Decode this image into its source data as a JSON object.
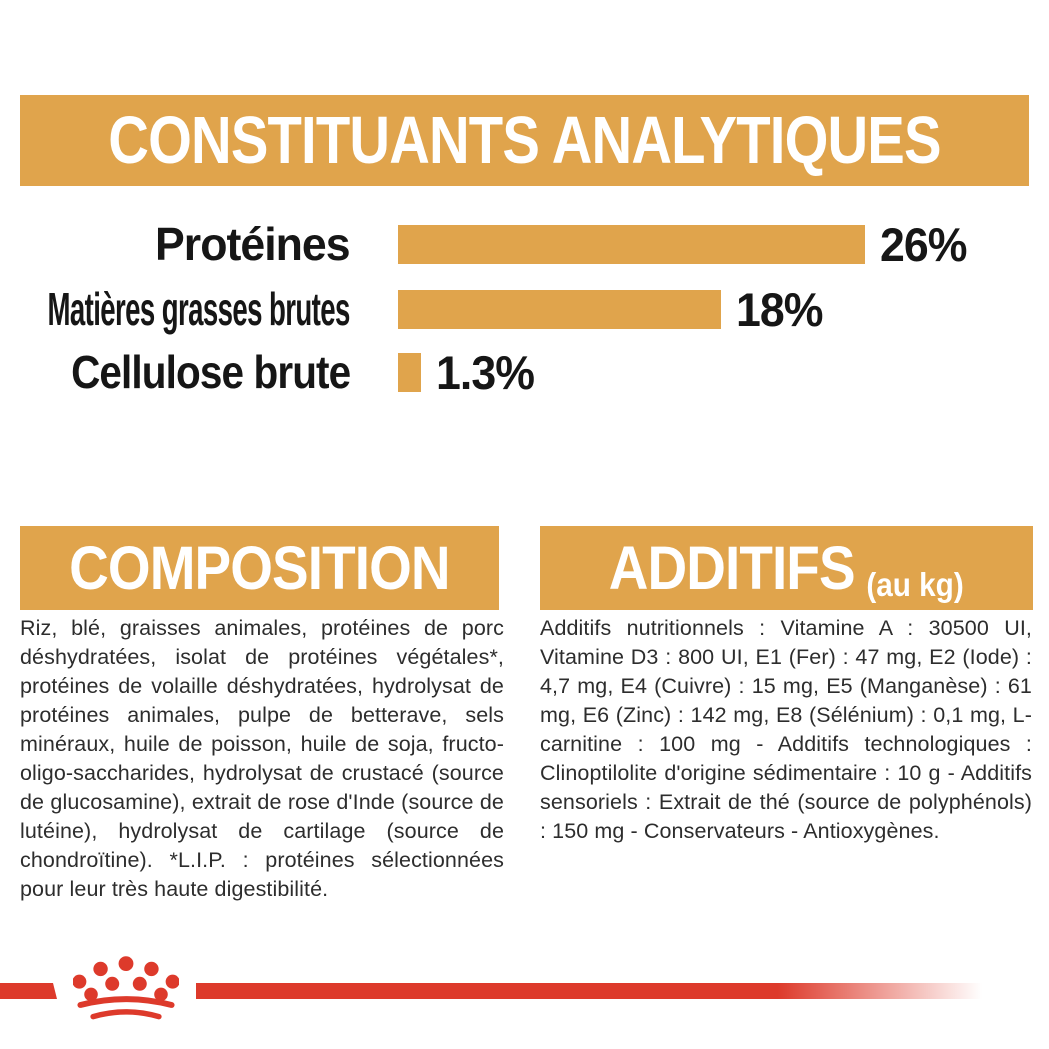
{
  "page": {
    "background": "#ffffff",
    "accent_gold": "#e0a44c",
    "brand_red": "#dd3a2b",
    "text_dark": "#1d1d1b"
  },
  "analytical": {
    "title": "CONSTITUANTS ANALYTIQUES"
  },
  "chart_data": {
    "type": "bar",
    "orientation": "horizontal",
    "title": "CONSTITUANTS ANALYTIQUES",
    "categories": [
      "Protéines",
      "Matières grasses brutes",
      "Cellulose brute"
    ],
    "values": [
      26,
      18,
      1.3
    ],
    "value_labels": [
      "26%",
      "18%",
      "1.3%"
    ],
    "unit": "%",
    "bar_color": "#e0a44c",
    "xlim": [
      0,
      26
    ],
    "grid": false,
    "legend": false
  },
  "composition": {
    "title": "COMPOSITION",
    "body": "Riz, blé, graisses animales, protéines de porc déshydratées, isolat de protéines végétales*, protéines de volaille déshydratées, hydrolysat de protéines animales, pulpe de betterave, sels minéraux, huile de poisson, huile de soja, fructo-oligo-saccharides, hydrolysat de crustacé (source de glucosamine), extrait de rose d'Inde (source de lutéine), hydrolysat de cartilage (source de chondroïtine). *L.I.P. : protéines sélectionnées pour leur très haute digestibilité."
  },
  "additifs": {
    "title": "ADDITIFS",
    "title_suffix": "(au kg)",
    "body": "Additifs nutritionnels : Vitamine A : 30500 UI, Vitamine D3 : 800 UI, E1 (Fer) : 47 mg, E2 (Iode) : 4,7 mg, E4 (Cuivre) : 15 mg, E5 (Manganèse) : 61 mg, E6 (Zinc) : 142 mg, E8 (Sélénium) : 0,1 mg, L-carnitine : 100 mg - Additifs technologiques : Clinoptilolite d'origine sédimentaire : 10 g - Additifs sensoriels : Extrait de thé (source de polyphénols) : 150 mg - Conservateurs - Antioxygènes."
  },
  "footer": {
    "logo": "royal-canin-crown"
  }
}
